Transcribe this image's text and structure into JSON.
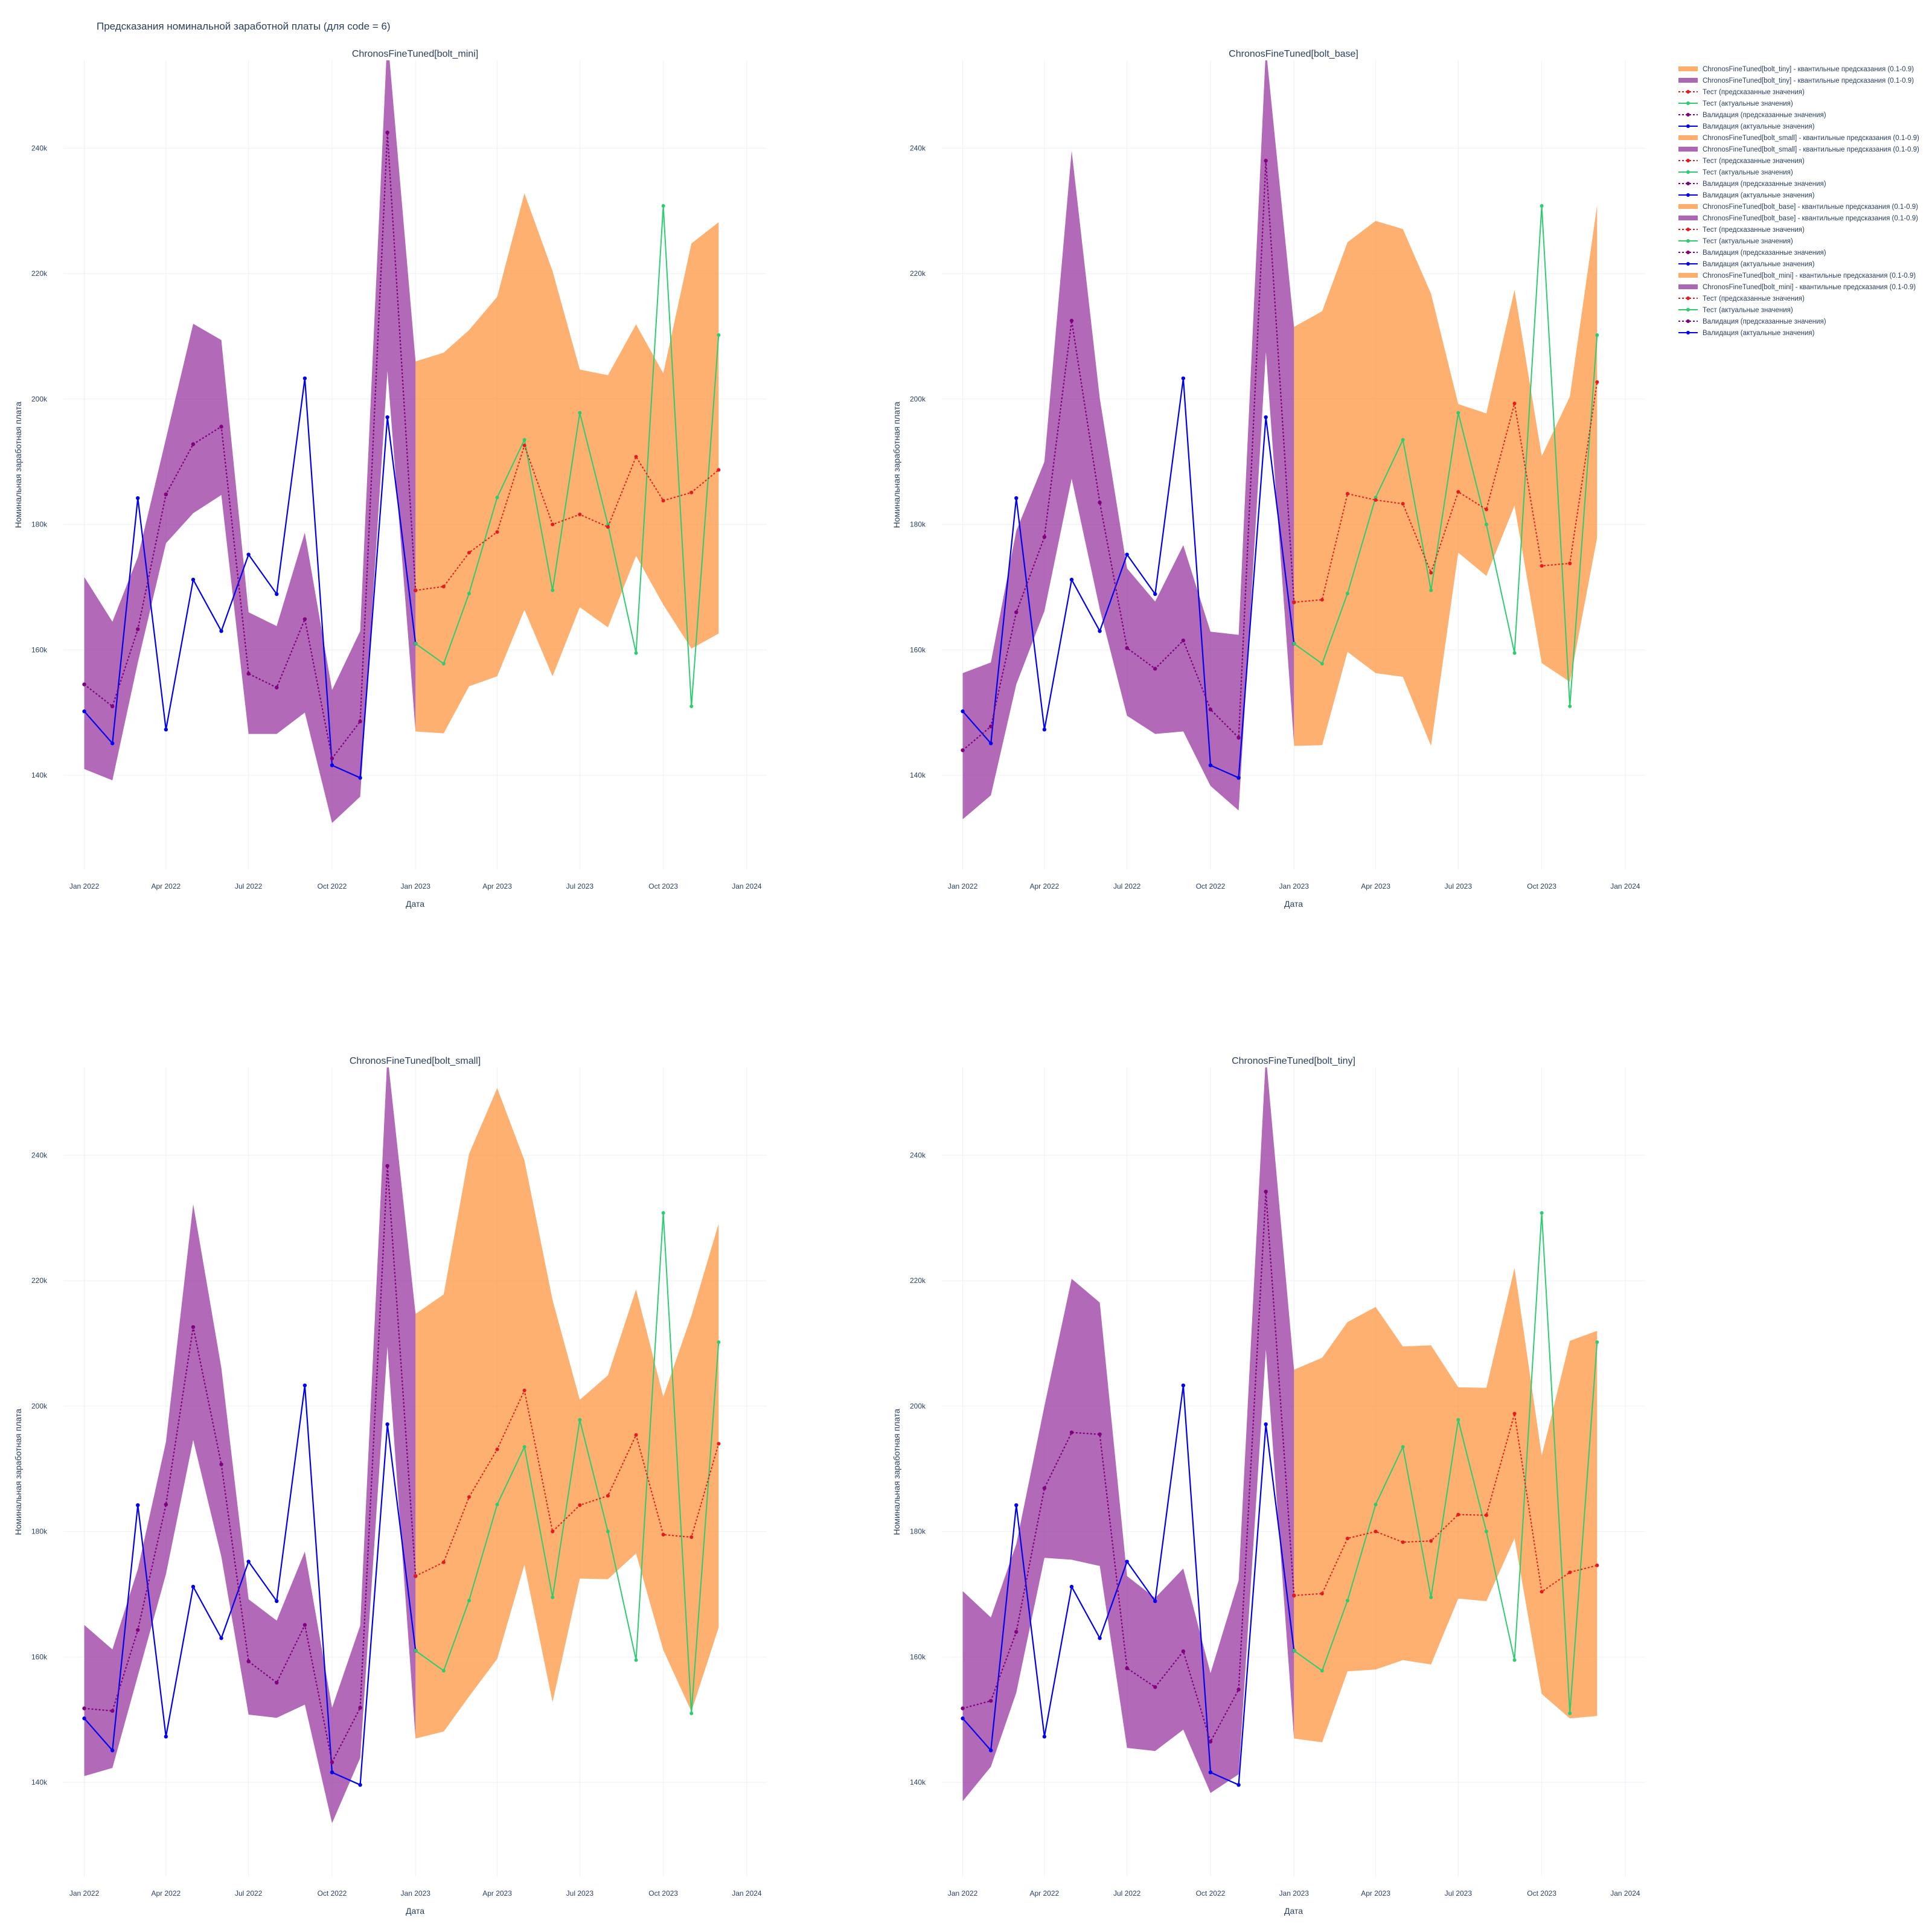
{
  "figure": {
    "title": "Предсказания номинальной заработной платы (для code = 6)"
  },
  "colors": {
    "band_validation": "#9b3fa4",
    "band_test": "#fd9a47",
    "validation_actual": "#0000ee",
    "validation_pred": "#800080",
    "test_actual": "#2ecc71",
    "test_pred": "#e8191d",
    "grid": "#ebf0f8",
    "text": "#2a3f5f"
  },
  "legend": {
    "placement": "right",
    "items": [
      {
        "label": "ChronosFineTuned[bolt_tiny] - квантильные предсказания (0.1-0.9)",
        "kind": "band",
        "color": "#fd9a47"
      },
      {
        "label": "ChronosFineTuned[bolt_tiny] - квантильные предсказания (0.1-0.9)",
        "kind": "band",
        "color": "#9b3fa4"
      },
      {
        "label": "Тест (предсказанные значения)",
        "kind": "dotline",
        "color": "#e8191d"
      },
      {
        "label": "Тест (актуальные значения)",
        "kind": "line",
        "color": "#2ecc71"
      },
      {
        "label": "Валидация (предсказанные значения)",
        "kind": "dotline",
        "color": "#800080"
      },
      {
        "label": "Валидация (актуальные значения)",
        "kind": "line",
        "color": "#0000ee"
      },
      {
        "label": "ChronosFineTuned[bolt_small] - квантильные предсказания (0.1-0.9)",
        "kind": "band",
        "color": "#fd9a47"
      },
      {
        "label": "ChronosFineTuned[bolt_small] - квантильные предсказания (0.1-0.9)",
        "kind": "band",
        "color": "#9b3fa4"
      },
      {
        "label": "Тест (предсказанные значения)",
        "kind": "dotline",
        "color": "#e8191d"
      },
      {
        "label": "Тест (актуальные значения)",
        "kind": "line",
        "color": "#2ecc71"
      },
      {
        "label": "Валидация (предсказанные значения)",
        "kind": "dotline",
        "color": "#800080"
      },
      {
        "label": "Валидация (актуальные значения)",
        "kind": "line",
        "color": "#0000ee"
      },
      {
        "label": "ChronosFineTuned[bolt_base] - квантильные предсказания (0.1-0.9)",
        "kind": "band",
        "color": "#fd9a47"
      },
      {
        "label": "ChronosFineTuned[bolt_base] - квантильные предсказания (0.1-0.9)",
        "kind": "band",
        "color": "#9b3fa4"
      },
      {
        "label": "Тест (предсказанные значения)",
        "kind": "dotline",
        "color": "#e8191d"
      },
      {
        "label": "Тест (актуальные значения)",
        "kind": "line",
        "color": "#2ecc71"
      },
      {
        "label": "Валидация (предсказанные значения)",
        "kind": "dotline",
        "color": "#800080"
      },
      {
        "label": "Валидация (актуальные значения)",
        "kind": "line",
        "color": "#0000ee"
      },
      {
        "label": "ChronosFineTuned[bolt_mini] - квантильные предсказания (0.1-0.9)",
        "kind": "band",
        "color": "#fd9a47"
      },
      {
        "label": "ChronosFineTuned[bolt_mini] - квантильные предсказания (0.1-0.9)",
        "kind": "band",
        "color": "#9b3fa4"
      },
      {
        "label": "Тест (предсказанные значения)",
        "kind": "dotline",
        "color": "#e8191d"
      },
      {
        "label": "Тест (актуальные значения)",
        "kind": "line",
        "color": "#2ecc71"
      },
      {
        "label": "Валидация (предсказанные значения)",
        "kind": "dotline",
        "color": "#800080"
      },
      {
        "label": "Валидация (актуальные значения)",
        "kind": "line",
        "color": "#0000ee"
      }
    ]
  },
  "chart_data": [
    {
      "type": "line",
      "title": "ChronosFineTuned[bolt_mini]",
      "xlabel": "Дата",
      "ylabel": "Номинальная заработная плата",
      "ylim": [
        125000,
        254000
      ],
      "xlim": [
        "2021-12-09",
        "2024-01-23"
      ],
      "grid": true,
      "x_ticks": [
        "Jan 2022",
        "Apr 2022",
        "Jul 2022",
        "Oct 2022",
        "Jan 2023",
        "Apr 2023",
        "Jul 2023",
        "Oct 2023",
        "Jan 2024"
      ],
      "x_tick_dates": [
        "2022-01-01",
        "2022-04-01",
        "2022-07-01",
        "2022-10-01",
        "2023-01-01",
        "2023-04-01",
        "2023-07-01",
        "2023-10-01",
        "2024-01-01"
      ],
      "y_ticks": [
        "140k",
        "160k",
        "180k",
        "200k",
        "220k",
        "240k"
      ],
      "y_tick_values": [
        140000,
        160000,
        180000,
        200000,
        220000,
        240000
      ],
      "x_validation": [
        "2022-01-01",
        "2022-02-01",
        "2022-03-01",
        "2022-04-01",
        "2022-05-01",
        "2022-06-01",
        "2022-07-01",
        "2022-08-01",
        "2022-09-01",
        "2022-10-01",
        "2022-11-01",
        "2022-12-01",
        "2023-01-01"
      ],
      "x_test": [
        "2023-01-01",
        "2023-02-01",
        "2023-03-01",
        "2023-04-01",
        "2023-05-01",
        "2023-06-01",
        "2023-07-01",
        "2023-08-01",
        "2023-09-01",
        "2023-10-01",
        "2023-11-01",
        "2023-12-01"
      ],
      "validation_actual": [
        150200,
        145100,
        184200,
        147300,
        171200,
        163000,
        175200,
        168900,
        203300,
        141600,
        139600,
        197100,
        161000
      ],
      "validation_pred": [
        154500,
        151000,
        163300,
        184800,
        192800,
        195600,
        156200,
        154000,
        164900,
        142700,
        148600,
        242500,
        169500
      ],
      "validation_band_low": [
        141000,
        139200,
        158000,
        177000,
        181800,
        184700,
        146600,
        146600,
        150000,
        132400,
        136600,
        204500,
        147000
      ],
      "validation_band_high": [
        171600,
        164500,
        174800,
        193700,
        212000,
        209400,
        166000,
        163800,
        178700,
        153600,
        163000,
        258000,
        206000
      ],
      "test_actual": [
        161000,
        157800,
        169000,
        184300,
        193500,
        169500,
        197800,
        180000,
        159500,
        230800,
        151000,
        210200
      ],
      "test_pred": [
        169500,
        170100,
        175500,
        178800,
        192600,
        180000,
        181600,
        179600,
        190800,
        183800,
        185100,
        188700
      ],
      "test_band_low": [
        147000,
        146700,
        154200,
        155800,
        166400,
        155800,
        166800,
        163600,
        175000,
        167200,
        160200,
        162600
      ],
      "test_band_high": [
        206000,
        207400,
        211000,
        216300,
        232800,
        220400,
        204700,
        203800,
        211900,
        204100,
        224800,
        228200
      ]
    },
    {
      "type": "line",
      "title": "ChronosFineTuned[bolt_base]",
      "xlabel": "Дата",
      "ylabel": "Номинальная заработная плата",
      "ylim": [
        125000,
        254000
      ],
      "xlim": [
        "2021-12-09",
        "2024-01-23"
      ],
      "grid": true,
      "x_ticks": [
        "Jan 2022",
        "Apr 2022",
        "Jul 2022",
        "Oct 2022",
        "Jan 2023",
        "Apr 2023",
        "Jul 2023",
        "Oct 2023",
        "Jan 2024"
      ],
      "x_tick_dates": [
        "2022-01-01",
        "2022-04-01",
        "2022-07-01",
        "2022-10-01",
        "2023-01-01",
        "2023-04-01",
        "2023-07-01",
        "2023-10-01",
        "2024-01-01"
      ],
      "y_ticks": [
        "140k",
        "160k",
        "180k",
        "200k",
        "220k",
        "240k"
      ],
      "y_tick_values": [
        140000,
        160000,
        180000,
        200000,
        220000,
        240000
      ],
      "x_validation": [
        "2022-01-01",
        "2022-02-01",
        "2022-03-01",
        "2022-04-01",
        "2022-05-01",
        "2022-06-01",
        "2022-07-01",
        "2022-08-01",
        "2022-09-01",
        "2022-10-01",
        "2022-11-01",
        "2022-12-01",
        "2023-01-01"
      ],
      "x_test": [
        "2023-01-01",
        "2023-02-01",
        "2023-03-01",
        "2023-04-01",
        "2023-05-01",
        "2023-06-01",
        "2023-07-01",
        "2023-08-01",
        "2023-09-01",
        "2023-10-01",
        "2023-11-01",
        "2023-12-01"
      ],
      "validation_actual": [
        150200,
        145100,
        184200,
        147300,
        171200,
        163000,
        175200,
        168900,
        203300,
        141600,
        139600,
        197100,
        161000
      ],
      "validation_pred": [
        144000,
        147800,
        166000,
        178000,
        212500,
        183500,
        160300,
        157000,
        161500,
        150500,
        146000,
        238000,
        167600
      ],
      "validation_band_low": [
        133000,
        136800,
        154500,
        166200,
        187300,
        166500,
        149500,
        146600,
        147000,
        138300,
        134400,
        207500,
        145000
      ],
      "validation_band_high": [
        156300,
        158000,
        179000,
        190000,
        239600,
        200100,
        173000,
        167700,
        176700,
        162900,
        162400,
        256000,
        211500
      ],
      "test_actual": [
        161000,
        157800,
        169000,
        184300,
        193500,
        169500,
        197800,
        180000,
        159500,
        230800,
        151000,
        210200
      ],
      "test_pred": [
        167600,
        168000,
        184900,
        183900,
        183300,
        172300,
        185200,
        182400,
        199300,
        173400,
        173800,
        202700
      ],
      "test_band_low": [
        144700,
        144800,
        159700,
        156300,
        155700,
        144700,
        175500,
        171800,
        183000,
        157900,
        154900,
        177900
      ],
      "test_band_high": [
        211500,
        214000,
        225000,
        228400,
        227100,
        216800,
        199200,
        197700,
        217400,
        190900,
        200400,
        230900
      ]
    },
    {
      "type": "line",
      "title": "ChronosFineTuned[bolt_small]",
      "xlabel": "Дата",
      "ylabel": "Номинальная заработная плата",
      "ylim": [
        125000,
        254000
      ],
      "xlim": [
        "2021-12-09",
        "2024-01-23"
      ],
      "grid": true,
      "x_ticks": [
        "Jan 2022",
        "Apr 2022",
        "Jul 2022",
        "Oct 2022",
        "Jan 2023",
        "Apr 2023",
        "Jul 2023",
        "Oct 2023",
        "Jan 2024"
      ],
      "x_tick_dates": [
        "2022-01-01",
        "2022-04-01",
        "2022-07-01",
        "2022-10-01",
        "2023-01-01",
        "2023-04-01",
        "2023-07-01",
        "2023-10-01",
        "2024-01-01"
      ],
      "y_ticks": [
        "140k",
        "160k",
        "180k",
        "200k",
        "220k",
        "240k"
      ],
      "y_tick_values": [
        140000,
        160000,
        180000,
        200000,
        220000,
        240000
      ],
      "x_validation": [
        "2022-01-01",
        "2022-02-01",
        "2022-03-01",
        "2022-04-01",
        "2022-05-01",
        "2022-06-01",
        "2022-07-01",
        "2022-08-01",
        "2022-09-01",
        "2022-10-01",
        "2022-11-01",
        "2022-12-01",
        "2023-01-01"
      ],
      "x_test": [
        "2023-01-01",
        "2023-02-01",
        "2023-03-01",
        "2023-04-01",
        "2023-05-01",
        "2023-06-01",
        "2023-07-01",
        "2023-08-01",
        "2023-09-01",
        "2023-10-01",
        "2023-11-01",
        "2023-12-01"
      ],
      "validation_actual": [
        150200,
        145100,
        184200,
        147300,
        171200,
        163000,
        175200,
        168900,
        203300,
        141600,
        139600,
        197100,
        161000
      ],
      "validation_pred": [
        151800,
        151400,
        164300,
        184300,
        212600,
        190700,
        159300,
        155900,
        165100,
        143200,
        151900,
        238300,
        172900
      ],
      "validation_band_low": [
        141000,
        142300,
        157000,
        173200,
        194600,
        176000,
        150800,
        150300,
        152400,
        133500,
        143900,
        209500,
        147000
      ],
      "validation_band_high": [
        165100,
        161200,
        174000,
        194300,
        232200,
        206100,
        169200,
        165800,
        176800,
        151900,
        165000,
        256000,
        214700
      ],
      "test_actual": [
        161000,
        157800,
        169000,
        184300,
        193500,
        169500,
        197800,
        180000,
        159500,
        230800,
        151000,
        210200
      ],
      "test_pred": [
        172900,
        175100,
        185500,
        193100,
        202500,
        180000,
        184200,
        185700,
        195400,
        179500,
        179100,
        194000
      ],
      "test_band_low": [
        147000,
        148100,
        153700,
        159700,
        174700,
        152800,
        172500,
        172400,
        176500,
        161100,
        151300,
        164700
      ],
      "test_band_high": [
        214700,
        217800,
        240200,
        250700,
        239200,
        216900,
        201000,
        204900,
        218600,
        201500,
        214400,
        229100
      ]
    },
    {
      "type": "line",
      "title": "ChronosFineTuned[bolt_tiny]",
      "xlabel": "Дата",
      "ylabel": "Номинальная заработная плата",
      "ylim": [
        125000,
        254000
      ],
      "xlim": [
        "2021-12-09",
        "2024-01-23"
      ],
      "grid": true,
      "x_ticks": [
        "Jan 2022",
        "Apr 2022",
        "Jul 2022",
        "Oct 2022",
        "Jan 2023",
        "Apr 2023",
        "Jul 2023",
        "Oct 2023",
        "Jan 2024"
      ],
      "x_tick_dates": [
        "2022-01-01",
        "2022-04-01",
        "2022-07-01",
        "2022-10-01",
        "2023-01-01",
        "2023-04-01",
        "2023-07-01",
        "2023-10-01",
        "2024-01-01"
      ],
      "y_ticks": [
        "140k",
        "160k",
        "180k",
        "200k",
        "220k",
        "240k"
      ],
      "y_tick_values": [
        140000,
        160000,
        180000,
        200000,
        220000,
        240000
      ],
      "x_validation": [
        "2022-01-01",
        "2022-02-01",
        "2022-03-01",
        "2022-04-01",
        "2022-05-01",
        "2022-06-01",
        "2022-07-01",
        "2022-08-01",
        "2022-09-01",
        "2022-10-01",
        "2022-11-01",
        "2022-12-01",
        "2023-01-01"
      ],
      "x_test": [
        "2023-01-01",
        "2023-02-01",
        "2023-03-01",
        "2023-04-01",
        "2023-05-01",
        "2023-06-01",
        "2023-07-01",
        "2023-08-01",
        "2023-09-01",
        "2023-10-01",
        "2023-11-01",
        "2023-12-01"
      ],
      "validation_actual": [
        150200,
        145100,
        184200,
        147300,
        171200,
        163000,
        175200,
        168900,
        203300,
        141600,
        139600,
        197100,
        161000
      ],
      "validation_pred": [
        151800,
        153000,
        164000,
        186900,
        195800,
        195500,
        158200,
        155200,
        160900,
        146500,
        154800,
        234200,
        169800
      ],
      "validation_band_low": [
        137000,
        142500,
        154300,
        175800,
        175500,
        174500,
        145500,
        145000,
        148400,
        138300,
        141300,
        209000,
        147000
      ],
      "validation_band_high": [
        170500,
        166300,
        178000,
        200000,
        220300,
        216500,
        172900,
        169400,
        174100,
        157400,
        172200,
        256000,
        205800
      ],
      "test_actual": [
        161000,
        157800,
        169000,
        184300,
        193500,
        169500,
        197800,
        180000,
        159500,
        230800,
        151000,
        210200
      ],
      "test_pred": [
        169800,
        170100,
        178900,
        180000,
        178300,
        178500,
        182700,
        182600,
        198800,
        170400,
        173500,
        174600
      ],
      "test_band_low": [
        147000,
        146400,
        157700,
        158000,
        159500,
        158800,
        169300,
        168900,
        178900,
        154100,
        150200,
        150600
      ],
      "test_band_high": [
        205800,
        207700,
        213400,
        215800,
        209500,
        209700,
        203000,
        202900,
        222000,
        192100,
        210400,
        212000
      ]
    }
  ]
}
